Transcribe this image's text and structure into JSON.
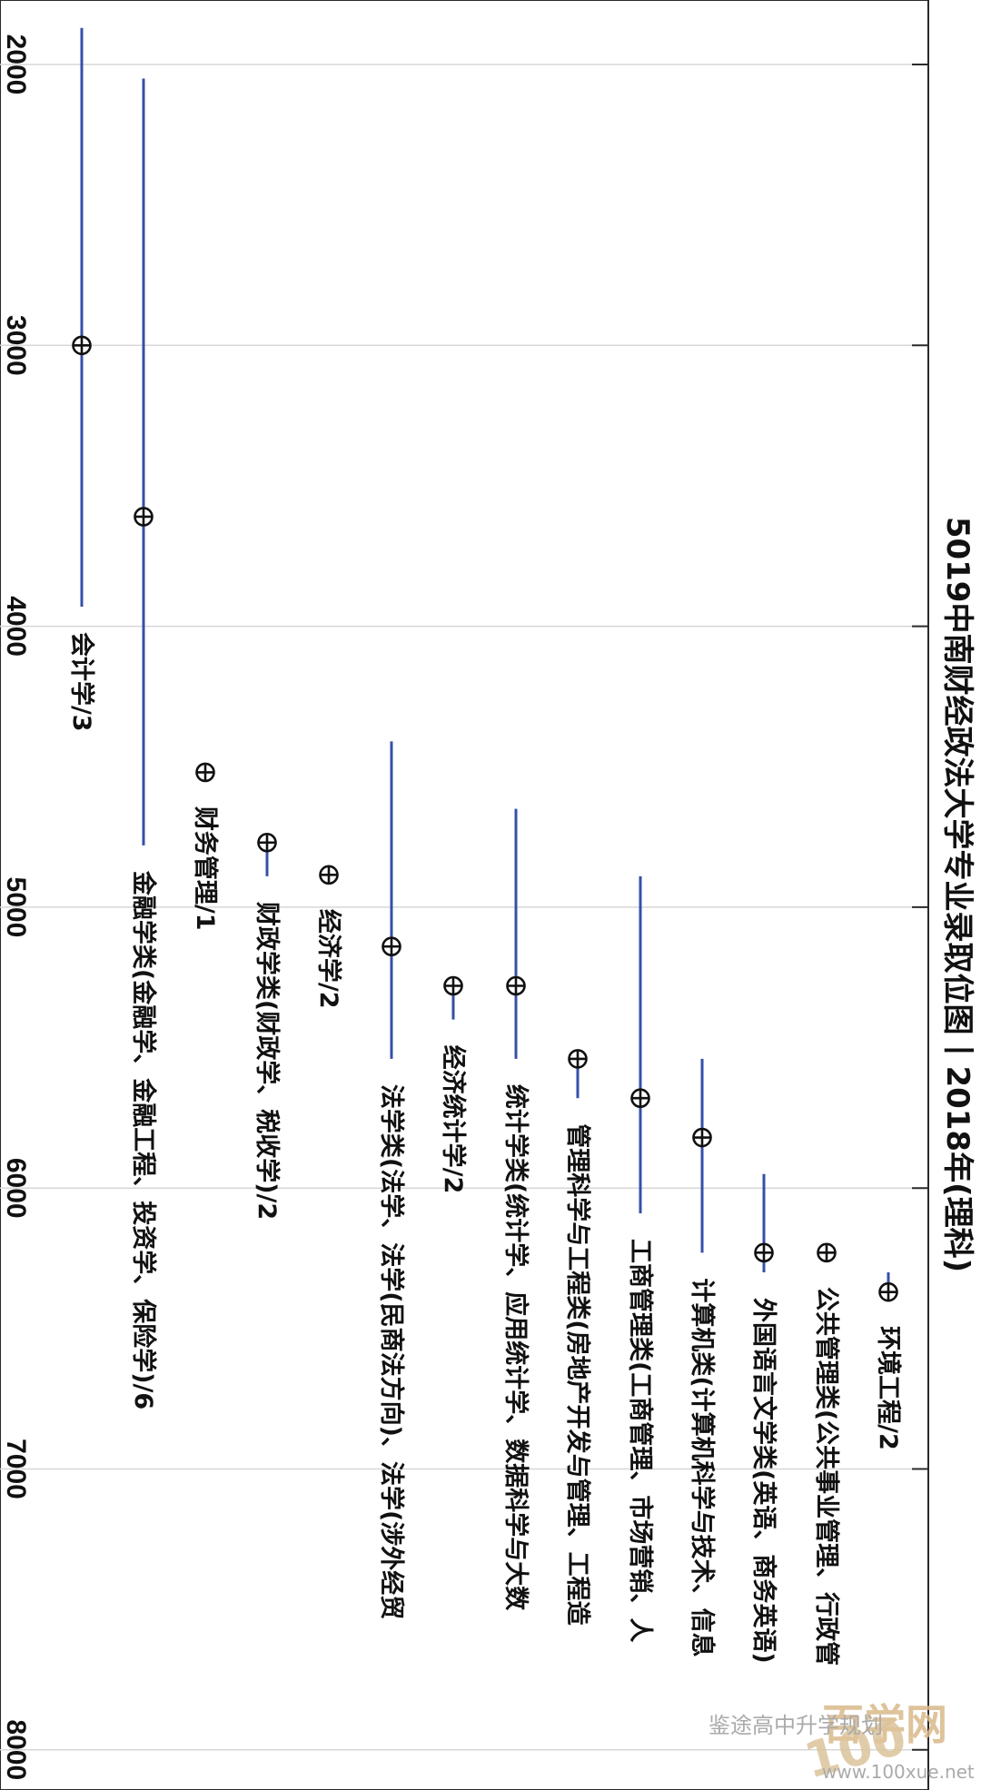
{
  "chart_data": {
    "type": "range",
    "title": "5019中南财经政法大学专业录取位图丨2018年(理科)",
    "axis_ticks": [
      "2000",
      "3000",
      "4000",
      "5000",
      "6000",
      "7000",
      "8000"
    ],
    "axis_range": [
      1770,
      8150
    ],
    "orientation": "rotated-90-clockwise",
    "grid": true,
    "points": [
      {
        "label": "会计学/3",
        "center": 3000,
        "min": 1870,
        "max": 3930
      },
      {
        "label": "金融学类(金融学、金融工程、投资学、保险学)/6",
        "center": 3610,
        "min": 2050,
        "max": 4780
      },
      {
        "label": "财务管理/1",
        "center": 4520,
        "min": 4520,
        "max": 4520
      },
      {
        "label": "财政学类(财政学、税收学)/2",
        "center": 4770,
        "min": 4770,
        "max": 4890
      },
      {
        "label": "经济学/2",
        "center": 4885,
        "min": 4885,
        "max": 4885
      },
      {
        "label": "法学类(法学、法学(民商法方向)、法学(涉外经贸",
        "center": 5140,
        "min": 4410,
        "max": 5540
      },
      {
        "label": "经济统计学/2",
        "center": 5280,
        "min": 5280,
        "max": 5400
      },
      {
        "label": "统计学类(统计学、应用统计学、数据科学与大数",
        "center": 5280,
        "min": 4650,
        "max": 5540
      },
      {
        "label": "管理科学与工程类(房地产开发与管理、工程造",
        "center": 5540,
        "min": 5540,
        "max": 5680
      },
      {
        "label": "工商管理类(工商管理、市场营销、人",
        "center": 5680,
        "min": 4890,
        "max": 6090
      },
      {
        "label": "计算机类(计算机科学与技术、信息",
        "center": 5820,
        "min": 5540,
        "max": 6230
      },
      {
        "label": "外国语言文学类(英语、商务英语)",
        "center": 6230,
        "min": 5950,
        "max": 6300
      },
      {
        "label": "公共管理类(公共事业管理、行政管",
        "center": 6230,
        "min": 6230,
        "max": 6230
      },
      {
        "label": "环境工程/2",
        "center": 6370,
        "min": 6300,
        "max": 6400
      }
    ]
  },
  "watermark": {
    "logo_big": "百学网",
    "logo_num": "100",
    "site": "www.100xue.net",
    "wechat": "鉴途高中升学规划"
  },
  "colors": {
    "line": "#3550a8",
    "marker": "#111111",
    "grid": "#d7d7d7",
    "frame": "#2a2a2a"
  }
}
